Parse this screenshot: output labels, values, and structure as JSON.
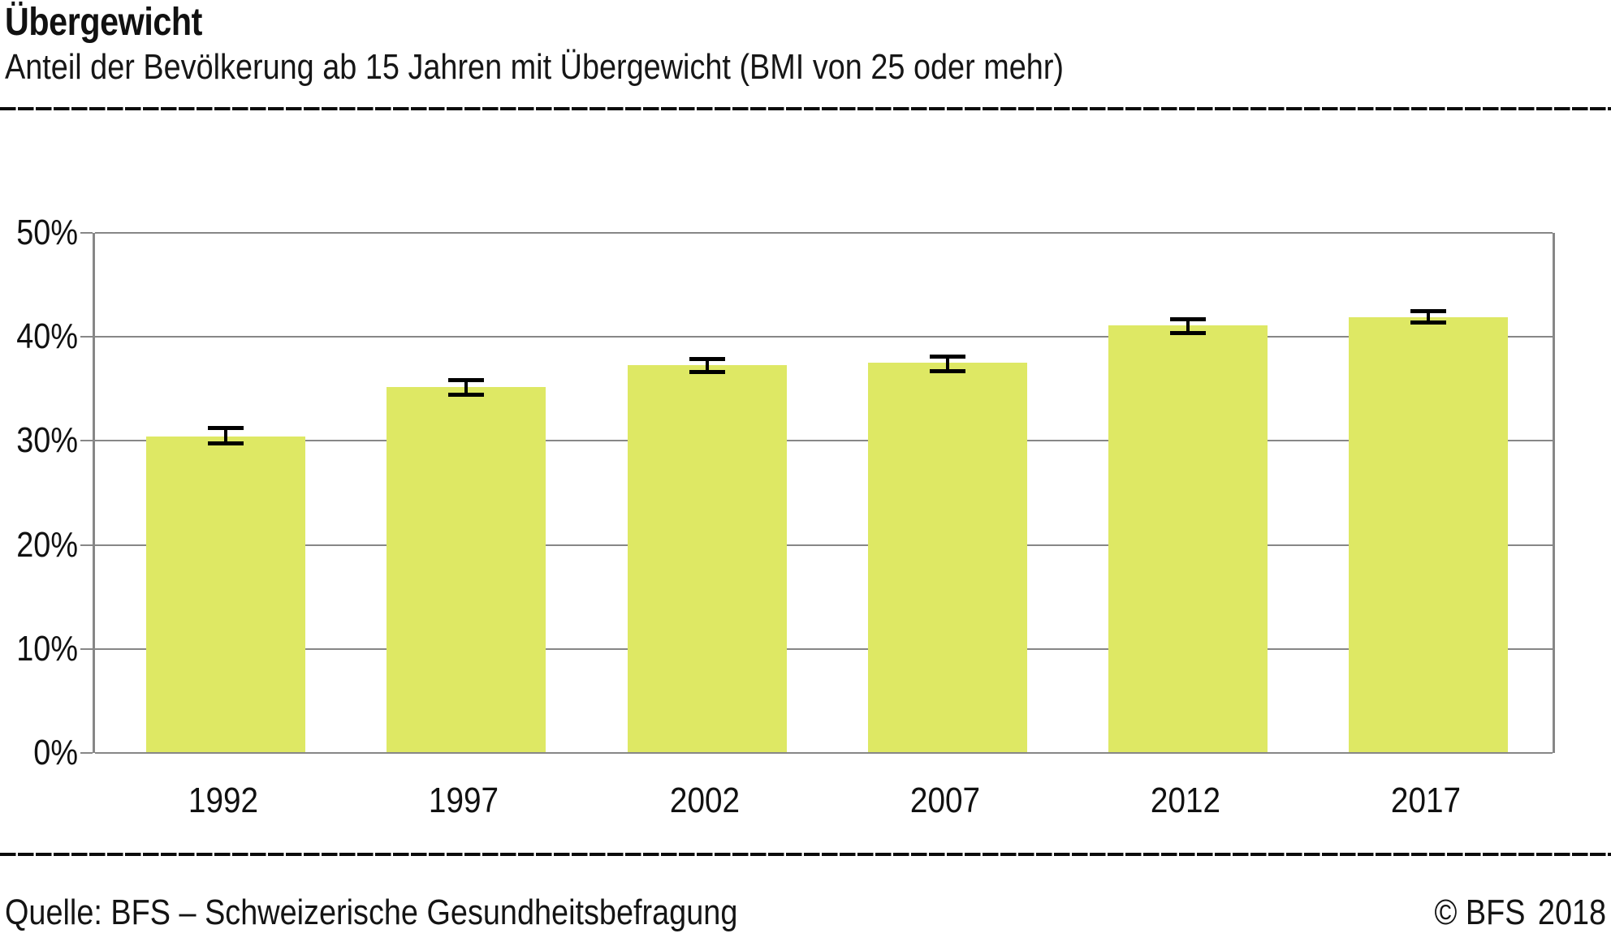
{
  "header": {
    "title": "Übergewicht",
    "subtitle": "Anteil der Bevölkerung ab 15 Jahren mit Übergewicht (BMI von 25 oder mehr)"
  },
  "footer": {
    "source": "Quelle: BFS – Schweizerische Gesundheitsbefragung",
    "copyright": "© BFS",
    "year": "2018"
  },
  "colors": {
    "bar_fill": "#dee864",
    "grid_gray": "#878787",
    "error_bar_black": "#000000",
    "rule_black": "#0b0b0b"
  },
  "chart_data": {
    "type": "bar",
    "title": "Übergewicht",
    "subtitle": "Anteil der Bevölkerung ab 15 Jahren mit Übergewicht (BMI von 25 oder mehr)",
    "categories": [
      "1992",
      "1997",
      "2002",
      "2007",
      "2012",
      "2017"
    ],
    "series": [
      {
        "name": "Anteil mit Übergewicht (BMI von 25 oder mehr)",
        "values": [
          30.4,
          35.2,
          37.3,
          37.5,
          41.1,
          41.9
        ]
      }
    ],
    "error_bars": [
      {
        "low": 29.5,
        "high": 31.4
      },
      {
        "low": 34.2,
        "high": 36.0
      },
      {
        "low": 36.5,
        "high": 38.1
      },
      {
        "low": 36.5,
        "high": 38.3
      },
      {
        "low": 40.2,
        "high": 41.9
      },
      {
        "low": 41.2,
        "high": 42.7
      }
    ],
    "xlabel": "",
    "ylabel": "",
    "ylim": [
      0,
      50
    ],
    "y_ticks": [
      {
        "value": 0,
        "label": "0%"
      },
      {
        "value": 10,
        "label": "10%"
      },
      {
        "value": 20,
        "label": "20%"
      },
      {
        "value": 30,
        "label": "30%"
      },
      {
        "value": 40,
        "label": "40%"
      },
      {
        "value": 50,
        "label": "50%"
      }
    ],
    "grid": true,
    "legend_position": "none"
  }
}
